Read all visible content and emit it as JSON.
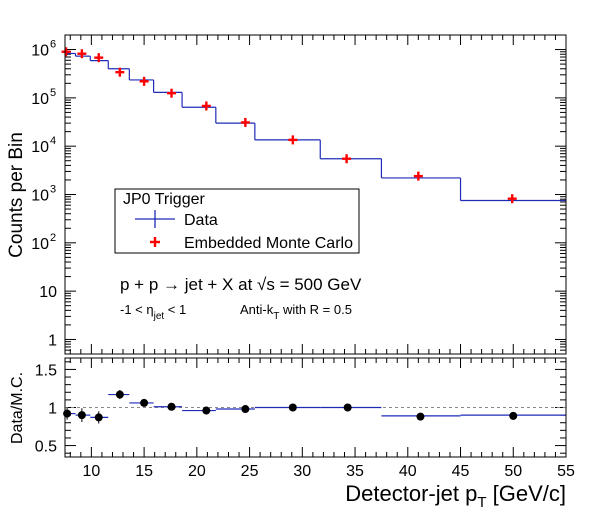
{
  "chart_data": {
    "type": "line",
    "x_range": [
      7.5,
      55
    ],
    "xlabel_main": "Detector-jet p",
    "xlabel_sub": "T",
    "xlabel_unit": " [GeV/c]",
    "x_ticks": [
      10,
      15,
      20,
      25,
      30,
      35,
      40,
      45,
      50,
      55
    ],
    "top_panel": {
      "ylabel": "Counts per Bin",
      "yscale": "log",
      "ylim": [
        0.5,
        2000000
      ],
      "y_tick_exponents": [
        0,
        1,
        2,
        3,
        4,
        5,
        6
      ],
      "series": [
        {
          "name": "Data",
          "style": "histogram",
          "color": "#1f2bb8",
          "bins": [
            {
              "xlow": 7.5,
              "xhigh": 8.5,
              "value": 830000
            },
            {
              "xlow": 8.5,
              "xhigh": 9.9,
              "value": 730000
            },
            {
              "xlow": 9.9,
              "xhigh": 11.6,
              "value": 590000
            },
            {
              "xlow": 11.6,
              "xhigh": 13.6,
              "value": 400000
            },
            {
              "xlow": 13.6,
              "xhigh": 15.9,
              "value": 235000
            },
            {
              "xlow": 15.9,
              "xhigh": 18.6,
              "value": 130000
            },
            {
              "xlow": 18.6,
              "xhigh": 21.8,
              "value": 64000
            },
            {
              "xlow": 21.8,
              "xhigh": 25.5,
              "value": 30000
            },
            {
              "xlow": 25.5,
              "xhigh": 31.7,
              "value": 13500
            },
            {
              "xlow": 31.7,
              "xhigh": 37.5,
              "value": 5500
            },
            {
              "xlow": 37.5,
              "xhigh": 45.0,
              "value": 2200
            },
            {
              "xlow": 45.0,
              "xhigh": 55.0,
              "value": 750
            }
          ]
        },
        {
          "name": "Embedded Monte Carlo",
          "style": "markers",
          "color": "#ff0000",
          "x": [
            7.6,
            9.1,
            10.7,
            12.7,
            15.0,
            17.6,
            20.9,
            24.6,
            29.1,
            34.2,
            41.0,
            49.9
          ],
          "y": [
            900000,
            820000,
            680000,
            340000,
            220000,
            125000,
            68000,
            31000,
            13500,
            5500,
            2400,
            820
          ]
        }
      ],
      "legend": {
        "title": "JP0 Trigger",
        "entries": [
          "Data",
          "Embedded Monte Carlo"
        ],
        "placement": "center-left"
      },
      "annotations": {
        "process": "p + p → jet + X at √s = 500 GeV",
        "eta_prefix": "-1 < η",
        "eta_sub": "jet",
        "eta_suffix": " < 1",
        "algo_prefix": "Anti-k",
        "algo_sub": "T",
        "algo_suffix": " with R = 0.5"
      }
    },
    "bottom_panel": {
      "ylabel": "Data/M.C.",
      "ylim": [
        0.35,
        1.65
      ],
      "y_ticks": [
        "0.5",
        "1",
        "1.5"
      ],
      "y_tick_values": [
        0.5,
        1.0,
        1.5
      ],
      "reference_line": 1.0,
      "histogram": [
        {
          "xlow": 7.5,
          "xhigh": 8.5,
          "value": 0.92
        },
        {
          "xlow": 8.5,
          "xhigh": 9.9,
          "value": 0.9
        },
        {
          "xlow": 9.9,
          "xhigh": 11.6,
          "value": 0.87
        },
        {
          "xlow": 11.6,
          "xhigh": 13.6,
          "value": 1.17
        },
        {
          "xlow": 13.6,
          "xhigh": 15.9,
          "value": 1.06
        },
        {
          "xlow": 15.9,
          "xhigh": 18.6,
          "value": 1.01
        },
        {
          "xlow": 18.6,
          "xhigh": 21.8,
          "value": 0.96
        },
        {
          "xlow": 21.8,
          "xhigh": 25.5,
          "value": 0.98
        },
        {
          "xlow": 25.5,
          "xhigh": 31.7,
          "value": 1.0
        },
        {
          "xlow": 31.7,
          "xhigh": 37.5,
          "value": 1.0
        },
        {
          "xlow": 37.5,
          "xhigh": 45.0,
          "value": 0.89
        },
        {
          "xlow": 45.0,
          "xhigh": 55.0,
          "value": 0.9
        }
      ],
      "points": [
        {
          "x": 7.7,
          "y": 0.92,
          "err": 0.08
        },
        {
          "x": 9.1,
          "y": 0.9,
          "err": 0.09
        },
        {
          "x": 10.7,
          "y": 0.87,
          "err": 0.08
        },
        {
          "x": 12.7,
          "y": 1.17,
          "err": 0.06
        },
        {
          "x": 15.0,
          "y": 1.06,
          "err": 0.04
        },
        {
          "x": 17.6,
          "y": 1.01,
          "err": 0.05
        },
        {
          "x": 20.9,
          "y": 0.96,
          "err": 0.03
        },
        {
          "x": 24.6,
          "y": 0.98,
          "err": 0.03
        },
        {
          "x": 29.1,
          "y": 1.0,
          "err": 0.03
        },
        {
          "x": 34.3,
          "y": 1.0,
          "err": 0.03
        },
        {
          "x": 41.2,
          "y": 0.88,
          "err": 0.03
        },
        {
          "x": 50.0,
          "y": 0.89,
          "err": 0.05
        }
      ]
    }
  }
}
